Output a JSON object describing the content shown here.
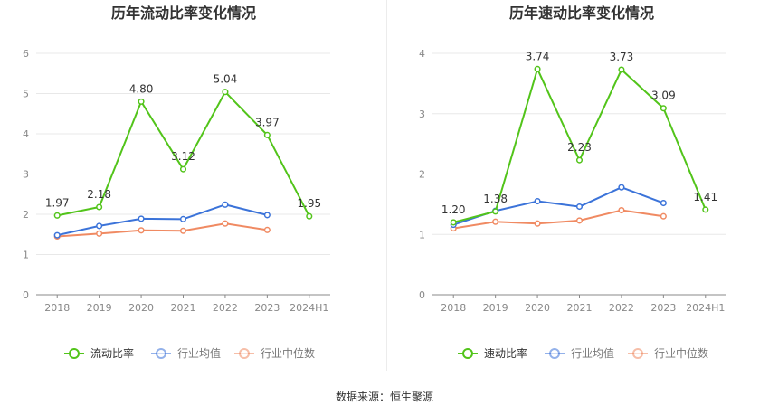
{
  "footer": {
    "source": "数据来源：恒生聚源"
  },
  "colors": {
    "company": "#52c41a",
    "industry_avg": "#3b73d9",
    "industry_median": "#f08a62",
    "grid": "#e8e8e8",
    "axis": "#666666",
    "label": "#333333"
  },
  "chart_data": [
    {
      "type": "line",
      "title": "历年流动比率变化情况",
      "categories": [
        "2018",
        "2019",
        "2020",
        "2021",
        "2022",
        "2023",
        "2024H1"
      ],
      "ylim": [
        0,
        6
      ],
      "yticks": [
        0,
        1,
        2,
        3,
        4,
        5,
        6
      ],
      "ytick_labels": [
        "0",
        "1",
        "2",
        "3",
        "4",
        "5",
        "6"
      ],
      "xlabel": "",
      "ylabel": "",
      "series": [
        {
          "name": "流动比率",
          "key": "company",
          "values": [
            1.97,
            2.18,
            4.8,
            3.12,
            5.04,
            3.97,
            1.95
          ],
          "labels": [
            "1.97",
            "2.18",
            "4.80",
            "3.12",
            "5.04",
            "3.97",
            "1.95"
          ]
        },
        {
          "name": "行业均值",
          "key": "industry_avg",
          "values": [
            1.48,
            1.71,
            1.89,
            1.88,
            2.24,
            1.98,
            null
          ]
        },
        {
          "name": "行业中位数",
          "key": "industry_median",
          "values": [
            1.45,
            1.52,
            1.6,
            1.59,
            1.77,
            1.61,
            null
          ]
        }
      ],
      "legend": "bottom-center"
    },
    {
      "type": "line",
      "title": "历年速动比率变化情况",
      "categories": [
        "2018",
        "2019",
        "2020",
        "2021",
        "2022",
        "2023",
        "2024H1"
      ],
      "ylim": [
        0,
        4
      ],
      "yticks": [
        0,
        1,
        2,
        3,
        4
      ],
      "ytick_labels": [
        "0",
        "1",
        "2",
        "3",
        "4"
      ],
      "xlabel": "",
      "ylabel": "",
      "series": [
        {
          "name": "速动比率",
          "key": "company",
          "values": [
            1.2,
            1.38,
            3.74,
            2.23,
            3.73,
            3.09,
            1.41
          ],
          "labels": [
            "1.20",
            "1.38",
            "3.74",
            "2.23",
            "3.73",
            "3.09",
            "1.41"
          ]
        },
        {
          "name": "行业均值",
          "key": "industry_avg",
          "values": [
            1.16,
            1.39,
            1.55,
            1.46,
            1.78,
            1.52,
            null
          ]
        },
        {
          "name": "行业中位数",
          "key": "industry_median",
          "values": [
            1.1,
            1.21,
            1.18,
            1.23,
            1.4,
            1.3,
            null
          ]
        }
      ],
      "legend": "bottom-center"
    }
  ]
}
